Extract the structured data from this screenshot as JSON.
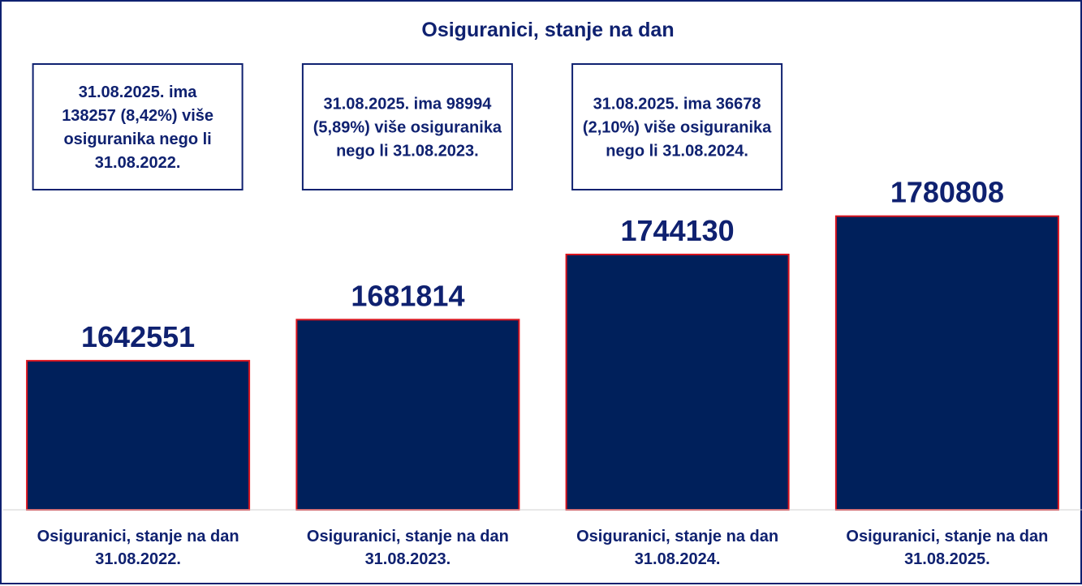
{
  "chart_data": {
    "type": "bar",
    "title": "Osiguranici, stanje na dan",
    "categories": [
      [
        "Osiguranici, stanje na dan",
        "31.08.2022."
      ],
      [
        "Osiguranici, stanje na dan",
        "31.08.2023."
      ],
      [
        "Osiguranici, stanje na dan",
        "31.08.2024."
      ],
      [
        "Osiguranici, stanje na dan",
        "31.08.2025."
      ]
    ],
    "values": [
      1642551,
      1681814,
      1744130,
      1780808
    ],
    "value_labels": [
      "1642551",
      "1681814",
      "1744130",
      "1780808"
    ],
    "annotations": [
      [
        "31.08.2025. ima",
        "138257 (8,42%) više",
        "osiguranika nego li",
        "31.08.2022."
      ],
      [
        "31.08.2025. ima  98994",
        "(5,89%) više osiguranika",
        "nego li 31.08.2023."
      ],
      [
        "31.08.2025. ima  36678",
        "(2,10%) više osiguranika",
        "nego li 31.08.2024."
      ]
    ],
    "ylim": [
      1500000,
      1810000
    ],
    "grid": false,
    "legend": "none",
    "colors": {
      "bar_fill": "#00205b",
      "bar_edge": "#d9141e",
      "text": "#0f2170",
      "frame": "#0f2170",
      "baseline": "#d0d0d0"
    }
  }
}
